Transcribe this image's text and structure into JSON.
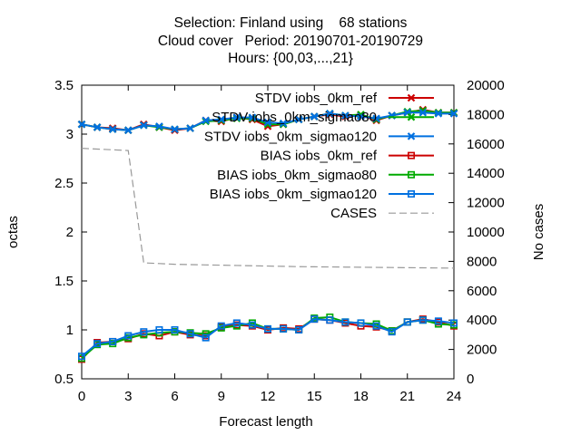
{
  "titles": [
    "Selection: Finland using    68 stations",
    "Cloud cover   Period: 20190701-20190729",
    "Hours: {00,03,...,21}"
  ],
  "chart_data": {
    "type": "line",
    "xlabel": "Forecast length",
    "ylabel": "octas",
    "y2label": "No cases",
    "xlim": [
      0,
      24
    ],
    "ylim": [
      0.5,
      3.5
    ],
    "y2lim": [
      0,
      20000
    ],
    "xticks": [
      0,
      3,
      6,
      9,
      12,
      15,
      18,
      21,
      24
    ],
    "yticks": [
      0.5,
      1,
      1.5,
      2,
      2.5,
      3,
      3.5
    ],
    "y2ticks": [
      0,
      2000,
      4000,
      6000,
      8000,
      10000,
      12000,
      14000,
      16000,
      18000,
      20000
    ],
    "legend_position": "top-right",
    "grid": false,
    "x": [
      0,
      1,
      2,
      3,
      4,
      5,
      6,
      7,
      8,
      9,
      10,
      11,
      12,
      13,
      14,
      15,
      16,
      17,
      18,
      19,
      20,
      21,
      22,
      23,
      24
    ],
    "series": [
      {
        "name": "STDV iobs_0km_ref",
        "color": "#cc0000",
        "marker": "x",
        "axis": "y1",
        "values": [
          3.1,
          3.07,
          3.06,
          3.04,
          3.1,
          3.07,
          3.04,
          3.06,
          3.14,
          3.13,
          3.17,
          3.15,
          3.08,
          3.1,
          3.15,
          3.18,
          3.2,
          3.18,
          3.19,
          3.14,
          3.19,
          3.22,
          3.25,
          3.22,
          3.22
        ]
      },
      {
        "name": "STDV iobs_0km_sigmao80",
        "color": "#00aa00",
        "marker": "x",
        "axis": "y1",
        "values": [
          3.1,
          3.07,
          3.05,
          3.04,
          3.09,
          3.07,
          3.05,
          3.06,
          3.13,
          3.14,
          3.16,
          3.16,
          3.1,
          3.1,
          3.15,
          3.18,
          3.21,
          3.19,
          3.2,
          3.15,
          3.19,
          3.23,
          3.24,
          3.22,
          3.22
        ]
      },
      {
        "name": "STDV iobs_0km_sigmao120",
        "color": "#0070e0",
        "marker": "x",
        "axis": "y1",
        "values": [
          3.1,
          3.07,
          3.05,
          3.04,
          3.09,
          3.08,
          3.05,
          3.06,
          3.14,
          3.15,
          3.17,
          3.17,
          3.12,
          3.11,
          3.15,
          3.18,
          3.21,
          3.19,
          3.18,
          3.16,
          3.19,
          3.22,
          3.22,
          3.21,
          3.21
        ]
      },
      {
        "name": "BIAS iobs_0km_ref",
        "color": "#cc0000",
        "marker": "square",
        "axis": "y1",
        "values": [
          0.7,
          0.87,
          0.88,
          0.91,
          0.96,
          0.94,
          0.98,
          0.95,
          0.94,
          1.03,
          1.05,
          1.04,
          1.0,
          1.02,
          1.01,
          1.11,
          1.1,
          1.07,
          1.04,
          1.03,
          0.99,
          1.08,
          1.11,
          1.08,
          1.04
        ]
      },
      {
        "name": "BIAS iobs_0km_sigmao80",
        "color": "#00aa00",
        "marker": "square",
        "axis": "y1",
        "values": [
          0.71,
          0.85,
          0.86,
          0.92,
          0.95,
          0.97,
          0.98,
          0.97,
          0.96,
          1.02,
          1.04,
          1.07,
          1.01,
          1.01,
          1.0,
          1.12,
          1.13,
          1.08,
          1.07,
          1.06,
          0.99,
          1.08,
          1.1,
          1.06,
          1.05
        ]
      },
      {
        "name": "BIAS iobs_0km_sigmao120",
        "color": "#0070e0",
        "marker": "square",
        "axis": "y1",
        "values": [
          0.73,
          0.86,
          0.88,
          0.94,
          0.98,
          1.0,
          1.0,
          0.96,
          0.92,
          1.04,
          1.07,
          1.05,
          1.01,
          1.01,
          1.0,
          1.11,
          1.1,
          1.08,
          1.07,
          1.04,
          0.98,
          1.08,
          1.1,
          1.09,
          1.07
        ]
      },
      {
        "name": "CASES",
        "color": "#999999",
        "marker": "none",
        "dashed": true,
        "axis": "y2",
        "values": [
          15700,
          15650,
          15600,
          15550,
          7900,
          7850,
          7800,
          7780,
          7760,
          7740,
          7720,
          7700,
          7680,
          7660,
          7640,
          7630,
          7620,
          7610,
          7600,
          7590,
          7580,
          7570,
          7560,
          7550,
          7540
        ]
      }
    ]
  }
}
